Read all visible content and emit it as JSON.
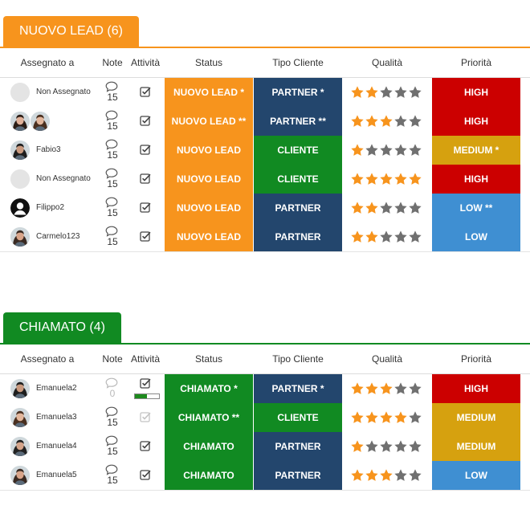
{
  "colors": {
    "orange": "#f7941d",
    "green": "#118a22",
    "navy": "#23466d",
    "red": "#cc0000",
    "gold": "#d6a10f",
    "blue": "#3f8fd2",
    "star_on": "#f7941d",
    "star_off": "#707070"
  },
  "columns": {
    "assign": "Assegnato a",
    "note": "Note",
    "attivita": "Attività",
    "status": "Status",
    "tipo": "Tipo Cliente",
    "qualita": "Qualità",
    "priorita": "Priorità"
  },
  "groups": [
    {
      "title": "NUOVO LEAD (6)",
      "color": "#f7941d",
      "rows": [
        {
          "assignee": "Non Assegnato",
          "avatar": "placeholder",
          "note_count": "15",
          "note_active": true,
          "activity": "done",
          "status": "NUOVO LEAD *",
          "status_color": "#f7941d",
          "tipo": "PARTNER *",
          "tipo_color": "#23466d",
          "rating": 2,
          "priority": "HIGH",
          "priority_color": "#cc0000"
        },
        {
          "assignee": "",
          "avatar": "pair",
          "note_count": "15",
          "note_active": true,
          "activity": "done",
          "status": "NUOVO LEAD **",
          "status_color": "#f7941d",
          "tipo": "PARTNER **",
          "tipo_color": "#23466d",
          "rating": 3,
          "priority": "HIGH",
          "priority_color": "#cc0000"
        },
        {
          "assignee": "Fabio3",
          "avatar": "photo",
          "note_count": "15",
          "note_active": true,
          "activity": "done",
          "status": "NUOVO LEAD",
          "status_color": "#f7941d",
          "tipo": "CLIENTE",
          "tipo_color": "#118a22",
          "rating": 1,
          "priority": "MEDIUM *",
          "priority_color": "#d6a10f"
        },
        {
          "assignee": "Non Assegnato",
          "avatar": "placeholder",
          "note_count": "15",
          "note_active": true,
          "activity": "done",
          "status": "NUOVO LEAD",
          "status_color": "#f7941d",
          "tipo": "CLIENTE",
          "tipo_color": "#118a22",
          "rating": 5,
          "priority": "HIGH",
          "priority_color": "#cc0000"
        },
        {
          "assignee": "Filippo2",
          "avatar": "silhouette",
          "note_count": "15",
          "note_active": true,
          "activity": "done",
          "status": "NUOVO LEAD",
          "status_color": "#f7941d",
          "tipo": "PARTNER",
          "tipo_color": "#23466d",
          "rating": 2,
          "priority": "LOW **",
          "priority_color": "#3f8fd2"
        },
        {
          "assignee": "Carmelo123",
          "avatar": "photo",
          "note_count": "15",
          "note_active": true,
          "activity": "done",
          "status": "NUOVO LEAD",
          "status_color": "#f7941d",
          "tipo": "PARTNER",
          "tipo_color": "#23466d",
          "rating": 2,
          "priority": "LOW",
          "priority_color": "#3f8fd2"
        }
      ]
    },
    {
      "title": "CHIAMATO (4)",
      "color": "#118a22",
      "rows": [
        {
          "assignee": "Emanuela2",
          "avatar": "photo",
          "note_count": "0",
          "note_active": false,
          "activity": "progress",
          "activity_progress": 0.5,
          "status": "CHIAMATO *",
          "status_color": "#118a22",
          "tipo": "PARTNER *",
          "tipo_color": "#23466d",
          "rating": 3,
          "priority": "HIGH",
          "priority_color": "#cc0000"
        },
        {
          "assignee": "Emanuela3",
          "avatar": "photo",
          "note_count": "15",
          "note_active": true,
          "activity": "faded",
          "status": "CHIAMATO **",
          "status_color": "#118a22",
          "tipo": "CLIENTE",
          "tipo_color": "#118a22",
          "rating": 4,
          "priority": "MEDIUM",
          "priority_color": "#d6a10f"
        },
        {
          "assignee": "Emanuela4",
          "avatar": "photo",
          "note_count": "15",
          "note_active": true,
          "activity": "done",
          "status": "CHIAMATO",
          "status_color": "#118a22",
          "tipo": "PARTNER",
          "tipo_color": "#23466d",
          "rating": 1,
          "priority": "MEDIUM",
          "priority_color": "#d6a10f"
        },
        {
          "assignee": "Emanuela5",
          "avatar": "photo",
          "note_count": "15",
          "note_active": true,
          "activity": "done",
          "status": "CHIAMATO",
          "status_color": "#118a22",
          "tipo": "PARTNER",
          "tipo_color": "#23466d",
          "rating": 3,
          "priority": "LOW",
          "priority_color": "#3f8fd2"
        }
      ]
    }
  ]
}
